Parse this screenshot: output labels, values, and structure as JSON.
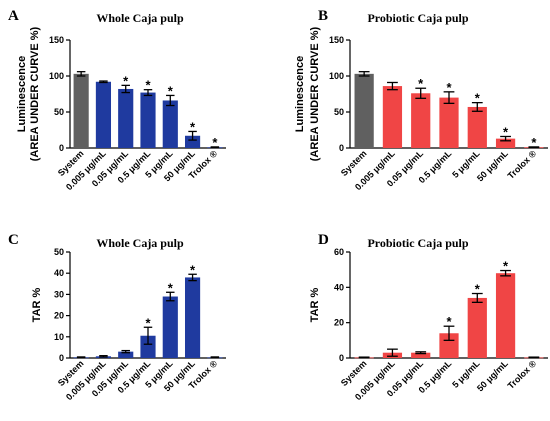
{
  "chart_data": [
    {
      "panel": "A",
      "type": "bar",
      "title": "Whole Caja pulp",
      "ylabel_line1": "Luminescence",
      "ylabel_line2": "(AREA UNDER CURVE %)",
      "xlabel": "",
      "ylim": [
        0,
        150
      ],
      "yticks": [
        0,
        50,
        100,
        150
      ],
      "categories": [
        "System",
        "0.005 μg/mL",
        "0.05 μg/mL",
        "0.5 μg/mL",
        "5 μg/mL",
        "50 μg/mL",
        "Trolox ®"
      ],
      "values": [
        103,
        92,
        82,
        77,
        66,
        17,
        1
      ],
      "errors": [
        3,
        1,
        5,
        4,
        7,
        6,
        0.5
      ],
      "significant": [
        false,
        false,
        true,
        true,
        true,
        true,
        true
      ],
      "colors": [
        "#606060",
        "#1f3a9f",
        "#1f3a9f",
        "#1f3a9f",
        "#1f3a9f",
        "#1f3a9f",
        "#1f3a9f"
      ]
    },
    {
      "panel": "B",
      "type": "bar",
      "title": "Probiotic Caja pulp",
      "ylabel_line1": "Luminescence",
      "ylabel_line2": "(AREA UNDER CURVE %)",
      "xlabel": "",
      "ylim": [
        0,
        150
      ],
      "yticks": [
        0,
        50,
        100,
        150
      ],
      "categories": [
        "System",
        "0.005 μg/mL",
        "0.05 μg/mL",
        "0.5 μg/mL",
        "5 μg/mL",
        "50 μg/mL",
        "Trolox ®"
      ],
      "values": [
        103,
        86,
        76,
        70,
        57,
        13,
        1
      ],
      "errors": [
        3,
        5,
        7,
        8,
        6,
        3,
        0.5
      ],
      "significant": [
        false,
        false,
        true,
        true,
        true,
        true,
        true
      ],
      "colors": [
        "#606060",
        "#f04545",
        "#f04545",
        "#f04545",
        "#f04545",
        "#f04545",
        "#f04545"
      ]
    },
    {
      "panel": "C",
      "type": "bar",
      "title": "Whole Caja pulp",
      "ylabel_line1": "TAR %",
      "ylabel_line2": "",
      "xlabel": "",
      "ylim": [
        0,
        50
      ],
      "yticks": [
        0,
        10,
        20,
        30,
        40,
        50
      ],
      "categories": [
        "System",
        "0.005 μg/mL",
        "0.05 μg/mL",
        "0.5 μg/mL",
        "5 μg/mL",
        "50 μg/mL",
        "Trolox ®"
      ],
      "values": [
        0.3,
        0.8,
        3,
        10.5,
        29,
        38,
        0.3
      ],
      "errors": [
        0.2,
        0.3,
        0.5,
        4,
        2,
        1.5,
        0.2
      ],
      "significant": [
        false,
        false,
        false,
        true,
        true,
        true,
        false
      ],
      "colors": [
        "#1f3a9f",
        "#1f3a9f",
        "#1f3a9f",
        "#1f3a9f",
        "#1f3a9f",
        "#1f3a9f",
        "#1f3a9f"
      ]
    },
    {
      "panel": "D",
      "type": "bar",
      "title": "Probiotic Caja pulp",
      "ylabel_line1": "TAR %",
      "ylabel_line2": "",
      "xlabel": "",
      "ylim": [
        0,
        60
      ],
      "yticks": [
        0,
        20,
        40,
        60
      ],
      "categories": [
        "System",
        "0.005 μg/mL",
        "0.05 μg/mL",
        "0.5 μg/mL",
        "5 μg/mL",
        "50 μg/mL",
        "Trolox ®"
      ],
      "values": [
        0.3,
        3,
        3,
        14,
        34,
        48,
        0.3
      ],
      "errors": [
        0.2,
        2,
        0.5,
        4,
        2.5,
        1.5,
        0.2
      ],
      "significant": [
        false,
        false,
        false,
        true,
        true,
        true,
        false
      ],
      "colors": [
        "#f04545",
        "#f04545",
        "#f04545",
        "#f04545",
        "#f04545",
        "#f04545",
        "#f04545"
      ]
    }
  ],
  "significance_marker": "*"
}
